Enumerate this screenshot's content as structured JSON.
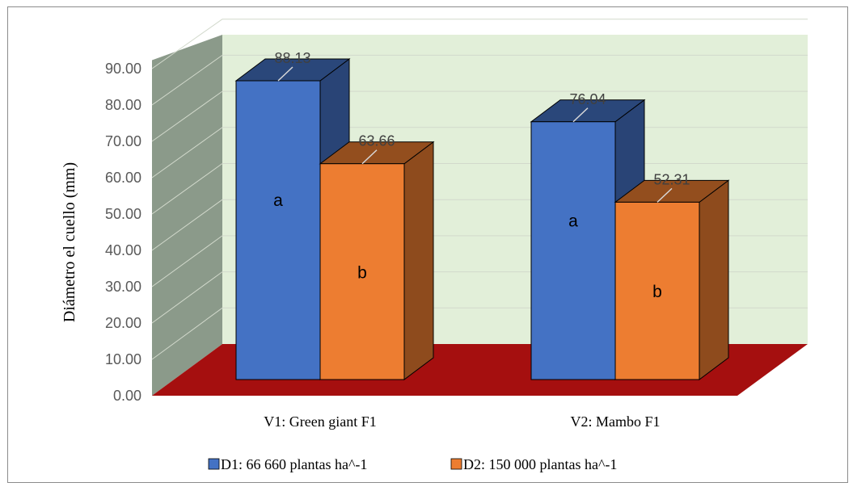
{
  "chart_data": {
    "type": "bar",
    "three_d": true,
    "categories": [
      "V1: Green giant F1",
      "V2: Mambo F1"
    ],
    "series": [
      {
        "name": "D1: 66 660 plantas ha^-1",
        "values": [
          88.13,
          76.04
        ],
        "letters": [
          "a",
          "a"
        ],
        "color": "#4472c4"
      },
      {
        "name": "D2: 150 000 plantas ha^-1",
        "values": [
          63.66,
          52.31
        ],
        "letters": [
          "b",
          "b"
        ],
        "color": "#ed7d31"
      }
    ],
    "ylabel": "Diámetro el cuello (mm)",
    "ylim": [
      0,
      90
    ],
    "yticks": [
      "0.00",
      "10.00",
      "20.00",
      "30.00",
      "40.00",
      "50.00",
      "60.00",
      "70.00",
      "80.00",
      "90.00"
    ],
    "data_labels": [
      "88.13",
      "76.04",
      "63.66",
      "52.31"
    ],
    "legend_position": "bottom",
    "gridlines": true,
    "colors": {
      "back_wall": "#e2efd9",
      "side_wall": "#8b9a8a",
      "floor": "#a50f0f",
      "grid": "#d2d9cc"
    }
  }
}
